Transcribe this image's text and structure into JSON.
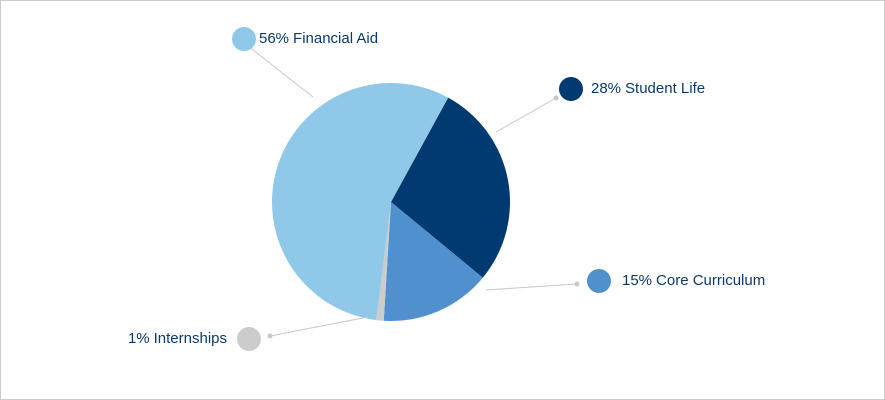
{
  "chart_data": {
    "type": "pie",
    "categories": [
      "Financial Aid",
      "Student Life",
      "Core Curriculum",
      "Internships"
    ],
    "values": [
      56,
      28,
      15,
      1
    ],
    "value_labels": [
      "56%",
      "28%",
      "15%",
      "1%"
    ],
    "colors": [
      "#8fc8e8",
      "#003a70",
      "#5090cf",
      "#cccccc"
    ]
  }
}
